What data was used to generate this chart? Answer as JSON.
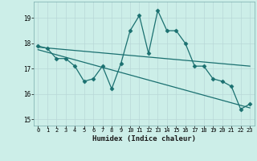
{
  "xlabel": "Humidex (Indice chaleur)",
  "background_color": "#cceee8",
  "plot_bg_color": "#cceee8",
  "grid_color": "#dde8e8",
  "line_color": "#1a7070",
  "xlim": [
    -0.5,
    23.5
  ],
  "ylim": [
    14.75,
    19.65
  ],
  "yticks": [
    15,
    16,
    17,
    18,
    19
  ],
  "xticks": [
    0,
    1,
    2,
    3,
    4,
    5,
    6,
    7,
    8,
    9,
    10,
    11,
    12,
    13,
    14,
    15,
    16,
    17,
    18,
    19,
    20,
    21,
    22,
    23
  ],
  "line1_x": [
    0,
    1,
    2,
    3,
    4,
    5,
    6,
    7,
    8,
    9,
    10,
    11,
    12,
    13,
    14,
    15,
    16,
    17,
    18,
    19,
    20,
    21,
    22,
    23
  ],
  "line1_y": [
    17.9,
    17.8,
    17.4,
    17.4,
    17.1,
    16.5,
    16.6,
    17.1,
    16.2,
    17.2,
    18.5,
    19.1,
    17.6,
    19.3,
    18.5,
    18.5,
    18.0,
    17.1,
    17.1,
    16.6,
    16.5,
    16.3,
    15.4,
    15.6
  ],
  "trend1_x": [
    0,
    23
  ],
  "trend1_y": [
    17.85,
    17.1
  ],
  "trend2_x": [
    0,
    23
  ],
  "trend2_y": [
    17.75,
    15.45
  ]
}
